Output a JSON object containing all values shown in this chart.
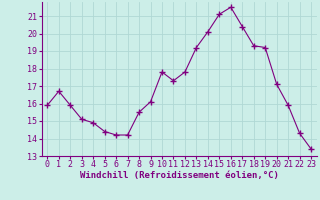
{
  "x": [
    0,
    1,
    2,
    3,
    4,
    5,
    6,
    7,
    8,
    9,
    10,
    11,
    12,
    13,
    14,
    15,
    16,
    17,
    18,
    19,
    20,
    21,
    22,
    23
  ],
  "y": [
    15.9,
    16.7,
    15.9,
    15.1,
    14.9,
    14.4,
    14.2,
    14.2,
    15.5,
    16.1,
    17.8,
    17.3,
    17.8,
    19.2,
    20.1,
    21.1,
    21.5,
    20.4,
    19.3,
    19.2,
    17.1,
    15.9,
    14.3,
    13.4
  ],
  "line_color": "#800080",
  "marker": "+",
  "marker_size": 4,
  "bg_color": "#cceee8",
  "grid_color": "#b0d8d4",
  "xlabel": "Windchill (Refroidissement éolien,°C)",
  "xlabel_color": "#800080",
  "tick_color": "#800080",
  "ylim": [
    13,
    21.8
  ],
  "xlim": [
    -0.5,
    23.5
  ],
  "yticks": [
    13,
    14,
    15,
    16,
    17,
    18,
    19,
    20,
    21
  ],
  "xticks": [
    0,
    1,
    2,
    3,
    4,
    5,
    6,
    7,
    8,
    9,
    10,
    11,
    12,
    13,
    14,
    15,
    16,
    17,
    18,
    19,
    20,
    21,
    22,
    23
  ],
  "font_family": "monospace",
  "tick_fontsize": 6,
  "xlabel_fontsize": 6.5
}
